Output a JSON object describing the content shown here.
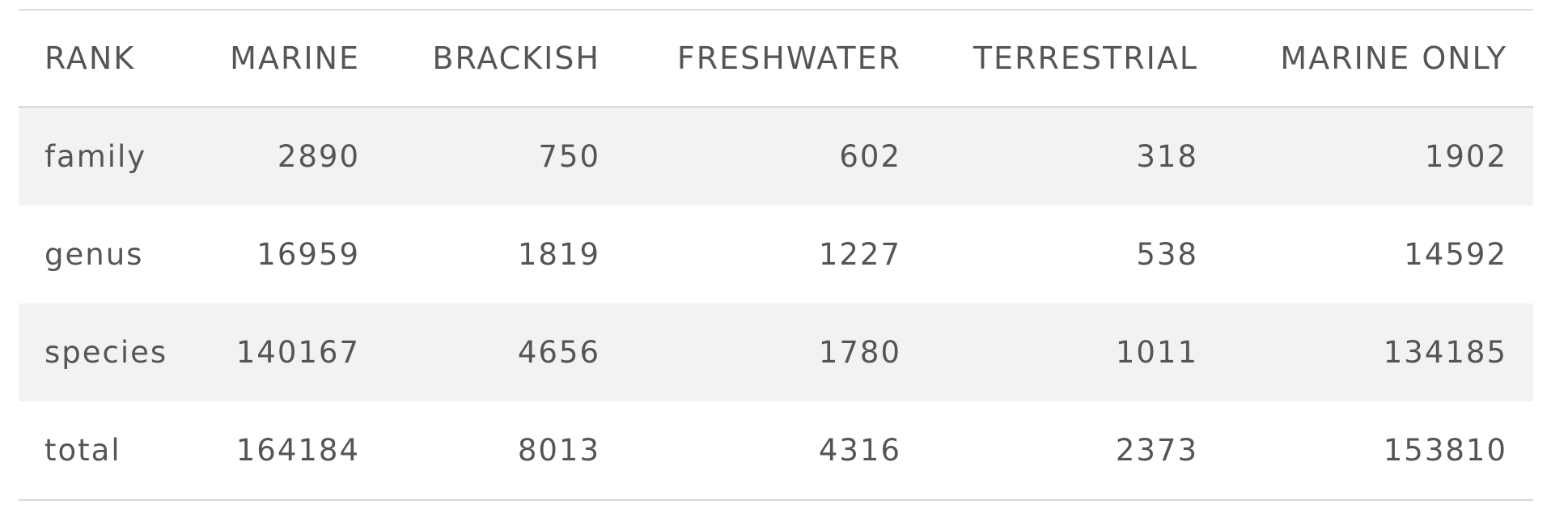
{
  "table": {
    "columns": [
      "RANK",
      "MARINE",
      "BRACKISH",
      "FRESHWATER",
      "TERRESTRIAL",
      "MARINE ONLY"
    ],
    "rows": [
      [
        "family",
        "2890",
        "750",
        "602",
        "318",
        "1902"
      ],
      [
        "genus",
        "16959",
        "1819",
        "1227",
        "538",
        "14592"
      ],
      [
        "species",
        "140167",
        "4656",
        "1780",
        "1011",
        "134185"
      ],
      [
        "total",
        "164184",
        "8013",
        "4316",
        "2373",
        "153810"
      ]
    ]
  },
  "colors": {
    "text": "#555555",
    "stripe": "#f2f2f2",
    "border": "#d8d8d8"
  }
}
